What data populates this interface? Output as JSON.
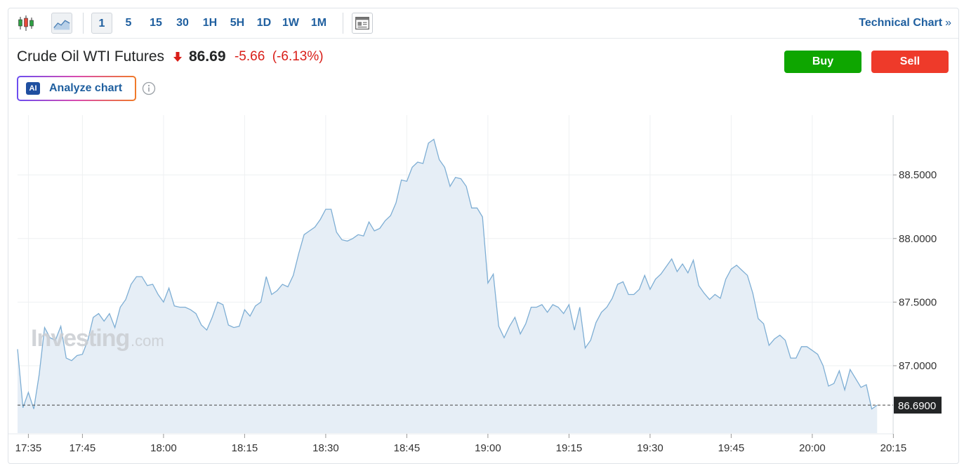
{
  "toolbar": {
    "timeframes": [
      "1",
      "5",
      "15",
      "30",
      "1H",
      "5H",
      "1D",
      "1W",
      "1M"
    ],
    "active_timeframe": "1",
    "technical_chart_label": "Technical Chart",
    "technical_chart_arrow": "»"
  },
  "instrument": {
    "name": "Crude Oil WTI Futures",
    "price": "86.69",
    "change": "-5.66",
    "change_pct": "(-6.13%)"
  },
  "actions": {
    "buy_label": "Buy",
    "sell_label": "Sell",
    "ai_badge": "AI",
    "analyze_label": "Analyze chart"
  },
  "watermark": {
    "brand": "Investing",
    "suffix": ".com"
  },
  "colors": {
    "line": "#7eaed4",
    "area": "#e6eef6",
    "down": "#d91e18",
    "buy": "#0ea600",
    "sell": "#ee3a2a",
    "link": "#1f5f9f",
    "price_tag": "#232526"
  },
  "chart_data": {
    "type": "area",
    "title": "",
    "xlabel": "",
    "ylabel": "",
    "x_tick_labels": [
      "17:35",
      "17:45",
      "18:00",
      "18:15",
      "18:30",
      "18:45",
      "19:00",
      "19:15",
      "19:30",
      "19:45",
      "20:00",
      "20:15"
    ],
    "y_tick_labels": [
      "88.5000",
      "88.0000",
      "87.5000",
      "87.0000"
    ],
    "y_ticks": [
      88.5,
      88.0,
      87.5,
      87.0
    ],
    "ylim": [
      86.47,
      88.97
    ],
    "grid": true,
    "last_price": 86.69,
    "last_price_label": "86.6900",
    "series": [
      {
        "x_minutes_start": "17:33",
        "x_step_minutes": 1,
        "values": [
          87.13,
          86.67,
          86.79,
          86.66,
          86.93,
          87.3,
          87.22,
          87.2,
          87.31,
          87.06,
          87.04,
          87.08,
          87.09,
          87.2,
          87.38,
          87.41,
          87.35,
          87.41,
          87.3,
          87.46,
          87.52,
          87.64,
          87.7,
          87.7,
          87.63,
          87.64,
          87.56,
          87.5,
          87.61,
          87.47,
          87.46,
          87.46,
          87.44,
          87.41,
          87.32,
          87.28,
          87.38,
          87.5,
          87.48,
          87.32,
          87.3,
          87.31,
          87.44,
          87.39,
          87.47,
          87.5,
          87.7,
          87.56,
          87.59,
          87.64,
          87.62,
          87.71,
          87.88,
          88.03,
          88.06,
          88.09,
          88.15,
          88.23,
          88.23,
          88.05,
          87.99,
          87.98,
          88.0,
          88.03,
          88.02,
          88.13,
          88.06,
          88.08,
          88.14,
          88.18,
          88.28,
          88.46,
          88.45,
          88.56,
          88.6,
          88.59,
          88.75,
          88.78,
          88.62,
          88.56,
          88.41,
          88.48,
          88.47,
          88.41,
          88.24,
          88.24,
          88.17,
          87.65,
          87.72,
          87.31,
          87.22,
          87.31,
          87.38,
          87.25,
          87.33,
          87.46,
          87.46,
          87.48,
          87.42,
          87.48,
          87.46,
          87.41,
          87.48,
          87.28,
          87.46,
          87.14,
          87.2,
          87.34,
          87.42,
          87.46,
          87.53,
          87.64,
          87.66,
          87.56,
          87.56,
          87.6,
          87.71,
          87.6,
          87.68,
          87.72,
          87.78,
          87.84,
          87.74,
          87.8,
          87.73,
          87.83,
          87.63,
          87.57,
          87.52,
          87.56,
          87.53,
          87.68,
          87.76,
          87.79,
          87.75,
          87.71,
          87.57,
          87.37,
          87.33,
          87.16,
          87.21,
          87.24,
          87.2,
          87.06,
          87.06,
          87.15,
          87.15,
          87.12,
          87.09,
          87.0,
          86.84,
          86.86,
          86.96,
          86.81,
          86.97,
          86.9,
          86.83,
          86.85,
          86.66,
          86.69
        ]
      }
    ]
  }
}
